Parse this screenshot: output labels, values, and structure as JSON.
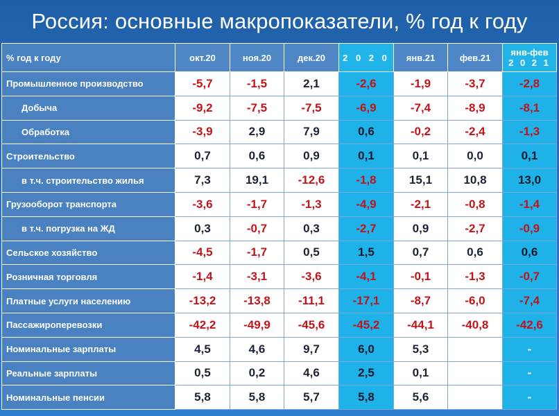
{
  "title": "Россия: основные макропоказатели, % год к году",
  "chart_data": {
    "type": "table",
    "title": "Россия: основные макропоказатели, % год к году",
    "row_header_label": "% год к году",
    "columns": [
      "окт.20",
      "ноя.20",
      "дек.20",
      "2 0 2 0",
      "янв.21",
      "фев.21",
      "янв-фев 2 0 2 1"
    ],
    "column_header_lines": [
      [
        "окт.20"
      ],
      [
        "ноя.20"
      ],
      [
        "дек.20"
      ],
      [
        "2 0 2 0"
      ],
      [
        "янв.21"
      ],
      [
        "фев.21"
      ],
      [
        "янв-фев",
        "2 0 2 1"
      ]
    ],
    "highlighted_columns": [
      3,
      6
    ],
    "rows": [
      {
        "label": "Промышленное производство",
        "indent": false,
        "values": [
          "-5,7",
          "-1,5",
          "2,1",
          "-2,6",
          "-1,9",
          "-3,7",
          "-2,8"
        ]
      },
      {
        "label": "Добыча",
        "indent": true,
        "values": [
          "-9,2",
          "-7,5",
          "-7,5",
          "-6,9",
          "-7,4",
          "-8,9",
          "-8,1"
        ]
      },
      {
        "label": "Обработка",
        "indent": true,
        "values": [
          "-3,9",
          "2,9",
          "7,9",
          "0,6",
          "-0,2",
          "-2,4",
          "-1,3"
        ]
      },
      {
        "label": "Строительство",
        "indent": false,
        "values": [
          "0,7",
          "0,6",
          "0,9",
          "0,1",
          "0,1",
          "0,0",
          "0,1"
        ]
      },
      {
        "label": "в т.ч. строительство жилья",
        "indent": true,
        "values": [
          "7,3",
          "19,1",
          "-12,6",
          "-1,8",
          "15,1",
          "10,8",
          "13,0"
        ]
      },
      {
        "label": "Грузооборот транспорта",
        "indent": false,
        "values": [
          "-3,6",
          "-1,7",
          "-1,3",
          "-4,9",
          "-2,1",
          "-0,8",
          "-1,4"
        ]
      },
      {
        "label": "в т.ч. погрузка на ЖД",
        "indent": true,
        "values": [
          "0,3",
          "-0,7",
          "0,3",
          "-2,7",
          "0,9",
          "-2,7",
          "-0,9"
        ]
      },
      {
        "label": "Сельское хозяйство",
        "indent": false,
        "values": [
          "-4,5",
          "-1,7",
          "0,5",
          "1,5",
          "0,7",
          "0,6",
          "0,6"
        ]
      },
      {
        "label": "Розничная торговля",
        "indent": false,
        "values": [
          "-1,4",
          "-3,1",
          "-3,6",
          "-4,1",
          "-0,1",
          "-1,3",
          "-0,7"
        ]
      },
      {
        "label": "Платные услуги населению",
        "indent": false,
        "values": [
          "-13,2",
          "-13,8",
          "-11,1",
          "-17,1",
          "-8,7",
          "-6,0",
          "-7,4"
        ]
      },
      {
        "label": "Пассажироперевозки",
        "indent": false,
        "values": [
          "-42,2",
          "-49,9",
          "-45,6",
          "-45,2",
          "-44,1",
          "-40,8",
          "-42,6"
        ]
      },
      {
        "label": "Номинальные зарплаты",
        "indent": false,
        "values": [
          "4,5",
          "4,6",
          "9,7",
          "6,0",
          "5,3",
          "-",
          "-"
        ]
      },
      {
        "label": "Реальные зарплаты",
        "indent": false,
        "values": [
          "0,5",
          "0,2",
          "4,6",
          "2,5",
          "0,1",
          "-",
          "-"
        ]
      },
      {
        "label": "Номинальные пенсии",
        "indent": false,
        "values": [
          "5,8",
          "5,8",
          "5,7",
          "5,8",
          "5,6",
          "-",
          "-"
        ]
      }
    ]
  },
  "colors": {
    "background": "#2b74c4",
    "label_cell": "#4a81c0",
    "header_cell": "#4e86c6",
    "highlight_column": "#20b4e8",
    "negative_value": "#c0141a",
    "positive_value": "#1a2233"
  }
}
